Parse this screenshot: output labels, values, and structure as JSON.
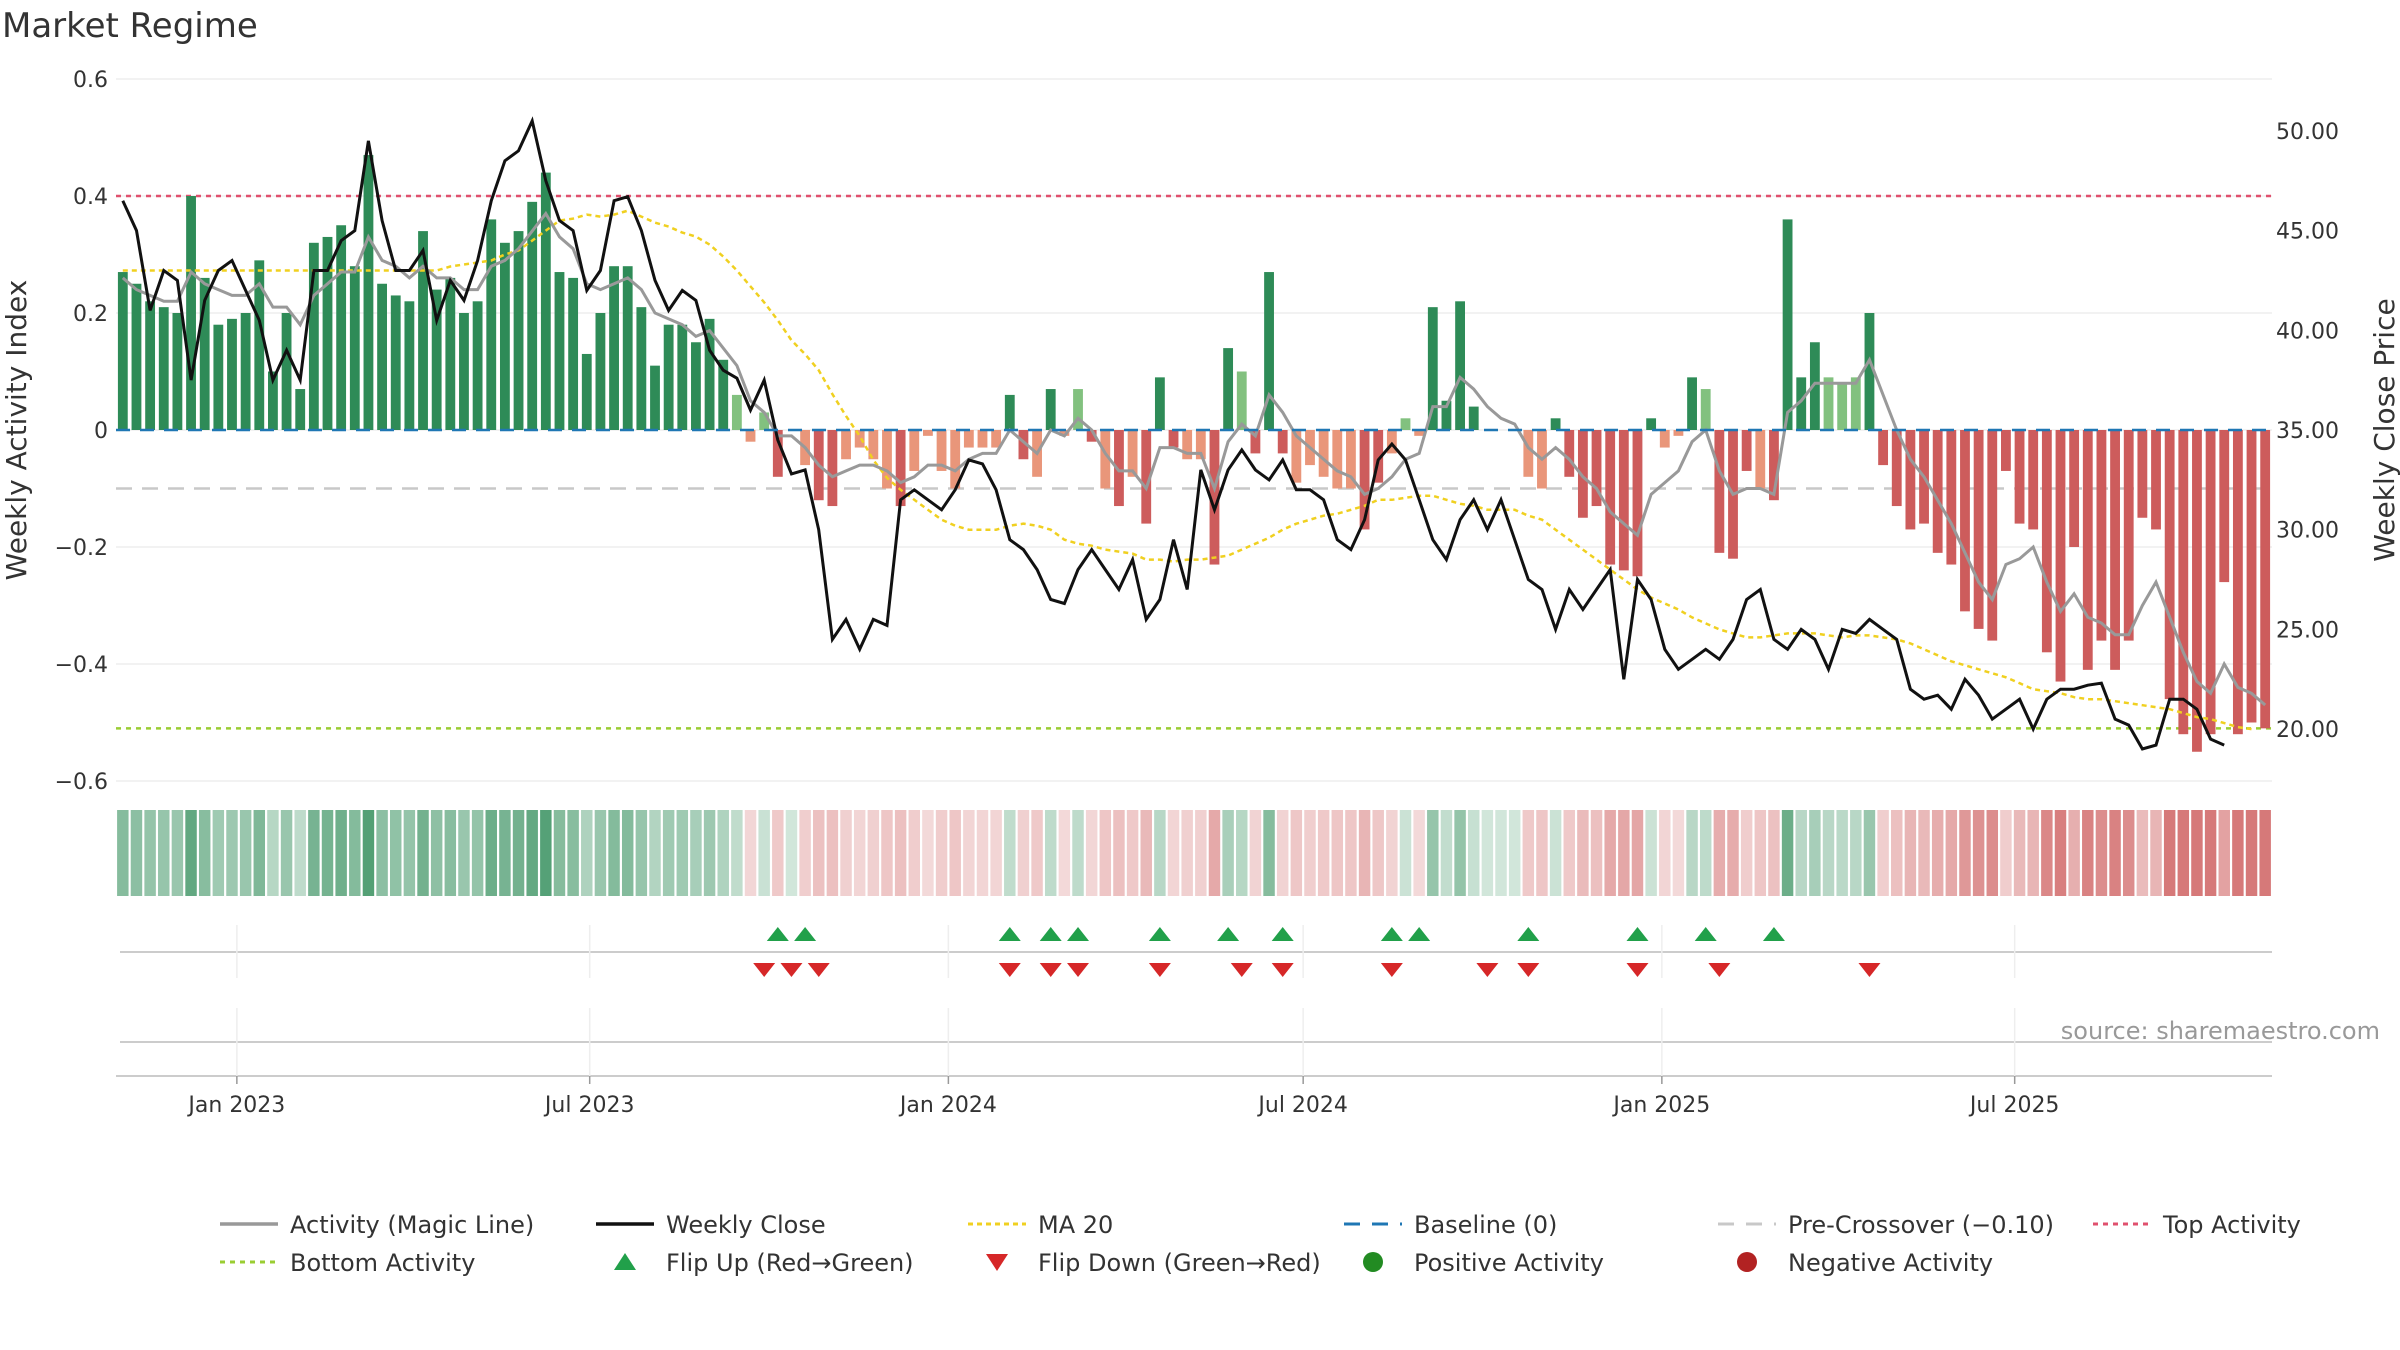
{
  "title": "Market Regime",
  "source": "source: sharemaestro.com",
  "chart_data": {
    "type": "bar",
    "title": "Market Regime",
    "ylabel": "Weekly Activity Index",
    "y2label": "Weekly Close Price",
    "ylim": [
      -0.6,
      0.6
    ],
    "y2lim": [
      17.5,
      52.5
    ],
    "yticks": [
      "0.6",
      "0.4",
      "0.2",
      "0",
      "−0.2",
      "−0.4",
      "−0.6"
    ],
    "y2ticks": [
      "50.00",
      "45.00",
      "40.00",
      "35.00",
      "30.00",
      "25.00",
      "20.00"
    ],
    "xticks": [
      "Jan 2023",
      "Jul 2023",
      "Jan 2024",
      "Jul 2024",
      "Jan 2025",
      "Jul 2025"
    ],
    "x_start": "2022-10-31",
    "weeks": 158,
    "top_activity": 0.4,
    "bottom_activity": -0.51,
    "pre_crossover": -0.1,
    "baseline": 0,
    "grid": true,
    "legend_position": "bottom",
    "activity": [
      0.27,
      0.25,
      0.22,
      0.21,
      0.2,
      0.4,
      0.26,
      0.18,
      0.19,
      0.2,
      0.29,
      0.1,
      0.2,
      0.07,
      0.32,
      0.33,
      0.35,
      0.28,
      0.47,
      0.25,
      0.23,
      0.22,
      0.34,
      0.24,
      0.26,
      0.2,
      0.22,
      0.36,
      0.32,
      0.34,
      0.39,
      0.44,
      0.27,
      0.26,
      0.13,
      0.2,
      0.28,
      0.28,
      0.21,
      0.11,
      0.18,
      0.18,
      0.15,
      0.19,
      0.12,
      0.06,
      -0.02,
      0.03,
      -0.08,
      0.0,
      -0.06,
      -0.12,
      -0.13,
      -0.05,
      -0.03,
      -0.05,
      -0.1,
      -0.13,
      -0.07,
      -0.01,
      -0.07,
      -0.1,
      -0.03,
      -0.03,
      -0.03,
      0.06,
      -0.05,
      -0.08,
      0.07,
      -0.01,
      0.07,
      -0.02,
      -0.1,
      -0.13,
      -0.08,
      -0.16,
      0.09,
      -0.03,
      -0.05,
      -0.05,
      -0.23,
      0.14,
      0.1,
      -0.04,
      0.27,
      -0.04,
      -0.09,
      -0.06,
      -0.08,
      -0.1,
      -0.1,
      -0.17,
      -0.09,
      -0.04,
      0.02,
      -0.01,
      0.21,
      0.05,
      0.22,
      0.04,
      0.0,
      0.0,
      0.0,
      -0.08,
      -0.1,
      0.02,
      -0.08,
      -0.15,
      -0.13,
      -0.23,
      -0.24,
      -0.25,
      0.02,
      -0.03,
      -0.01,
      0.09,
      0.07,
      -0.21,
      -0.22,
      -0.07,
      -0.1,
      -0.12,
      0.36,
      0.09,
      0.15,
      0.09,
      0.08,
      0.09,
      0.2,
      -0.06,
      -0.13,
      -0.17,
      -0.16,
      -0.21,
      -0.23,
      -0.31,
      -0.34,
      -0.36,
      -0.07,
      -0.16,
      -0.17,
      -0.38,
      -0.43,
      -0.2,
      -0.41,
      -0.36,
      -0.41,
      -0.36,
      -0.15,
      -0.17,
      -0.46,
      -0.52,
      -0.55,
      -0.52,
      -0.26,
      -0.52,
      -0.5,
      -0.51
    ],
    "magic_line": [
      0.26,
      0.24,
      0.23,
      0.22,
      0.22,
      0.27,
      0.25,
      0.24,
      0.23,
      0.23,
      0.25,
      0.21,
      0.21,
      0.18,
      0.23,
      0.25,
      0.27,
      0.27,
      0.33,
      0.29,
      0.28,
      0.26,
      0.28,
      0.26,
      0.26,
      0.24,
      0.24,
      0.28,
      0.29,
      0.31,
      0.34,
      0.37,
      0.33,
      0.31,
      0.25,
      0.24,
      0.25,
      0.26,
      0.24,
      0.2,
      0.19,
      0.18,
      0.16,
      0.17,
      0.14,
      0.11,
      0.05,
      0.03,
      -0.01,
      -0.01,
      -0.03,
      -0.06,
      -0.08,
      -0.07,
      -0.06,
      -0.06,
      -0.07,
      -0.09,
      -0.08,
      -0.06,
      -0.06,
      -0.07,
      -0.05,
      -0.04,
      -0.04,
      0.0,
      -0.02,
      -0.04,
      0.0,
      -0.01,
      0.02,
      0.0,
      -0.04,
      -0.07,
      -0.07,
      -0.1,
      -0.03,
      -0.03,
      -0.04,
      -0.04,
      -0.1,
      -0.02,
      0.01,
      -0.01,
      0.06,
      0.03,
      -0.01,
      -0.03,
      -0.05,
      -0.07,
      -0.08,
      -0.11,
      -0.1,
      -0.08,
      -0.05,
      -0.04,
      0.04,
      0.04,
      0.09,
      0.07,
      0.04,
      0.02,
      0.01,
      -0.03,
      -0.05,
      -0.03,
      -0.05,
      -0.08,
      -0.1,
      -0.14,
      -0.16,
      -0.18,
      -0.11,
      -0.09,
      -0.07,
      -0.02,
      0.0,
      -0.07,
      -0.11,
      -0.1,
      -0.1,
      -0.11,
      0.03,
      0.05,
      0.08,
      0.08,
      0.08,
      0.08,
      0.12,
      0.06,
      0.0,
      -0.05,
      -0.08,
      -0.12,
      -0.16,
      -0.21,
      -0.26,
      -0.29,
      -0.23,
      -0.22,
      -0.2,
      -0.26,
      -0.31,
      -0.28,
      -0.32,
      -0.33,
      -0.35,
      -0.35,
      -0.3,
      -0.26,
      -0.32,
      -0.38,
      -0.43,
      -0.45,
      -0.4,
      -0.44,
      -0.45,
      -0.47
    ],
    "weekly_close": [
      46.5,
      45.0,
      41.0,
      43.0,
      42.5,
      37.5,
      41.5,
      43.0,
      43.5,
      42.0,
      40.5,
      37.5,
      39.0,
      37.5,
      43.0,
      43.0,
      44.5,
      45.0,
      49.5,
      45.5,
      43.0,
      43.0,
      44.0,
      40.5,
      42.5,
      41.5,
      43.5,
      46.5,
      48.5,
      49.0,
      50.5,
      47.5,
      45.5,
      45.0,
      42.0,
      43.0,
      46.5,
      46.7,
      45.0,
      42.5,
      41.0,
      42.0,
      41.5,
      39.0,
      38.0,
      37.6,
      36.0,
      37.5,
      34.5,
      32.8,
      33.0,
      30.0,
      24.5,
      25.5,
      24.0,
      25.5,
      25.2,
      31.5,
      32.0,
      31.5,
      31.0,
      32.0,
      33.5,
      33.3,
      32.0,
      29.5,
      29.0,
      28.0,
      26.5,
      26.3,
      28.0,
      29.0,
      28.0,
      27.0,
      28.5,
      25.5,
      26.5,
      29.5,
      27.0,
      33.0,
      31.0,
      33.0,
      34.0,
      33.0,
      32.5,
      33.5,
      32.0,
      32.0,
      31.5,
      29.5,
      29.0,
      30.5,
      33.5,
      34.3,
      33.5,
      31.5,
      29.5,
      28.5,
      30.5,
      31.5,
      30.0,
      31.5,
      29.5,
      27.5,
      27.0,
      25.0,
      27.0,
      26.0,
      27.0,
      28.0,
      22.5,
      27.5,
      26.5,
      24.0,
      23.0,
      23.5,
      24.0,
      23.5,
      24.5,
      26.5,
      27.0,
      24.5,
      24.0,
      25.0,
      24.5,
      23.0,
      25.0,
      24.8,
      25.5,
      25.0,
      24.5,
      22.0,
      21.5,
      21.7,
      21.0,
      22.5,
      21.7,
      20.5,
      21.0,
      21.5,
      20.0,
      21.5,
      22.0,
      22.0,
      22.2,
      22.3,
      20.5,
      20.2,
      19.0,
      19.2,
      21.5,
      21.5,
      21.0,
      19.5,
      19.2
    ],
    "ma20": [
      43.0,
      43.0,
      43.0,
      43.0,
      43.0,
      43.0,
      43.0,
      43.0,
      43.0,
      43.0,
      43.0,
      43.0,
      43.0,
      43.0,
      43.0,
      43.0,
      43.0,
      43.0,
      43.0,
      43.0,
      43.0,
      43.0,
      43.0,
      43.0,
      43.2,
      43.3,
      43.4,
      43.5,
      43.8,
      44.0,
      44.5,
      45.0,
      45.5,
      45.6,
      45.8,
      45.7,
      45.8,
      46.0,
      45.7,
      45.4,
      45.2,
      44.9,
      44.7,
      44.3,
      43.7,
      43.0,
      42.2,
      41.4,
      40.5,
      39.5,
      38.8,
      38.0,
      36.8,
      35.7,
      34.7,
      33.5,
      32.6,
      32.0,
      31.5,
      31.0,
      30.5,
      30.2,
      30.0,
      30.0,
      30.0,
      30.2,
      30.3,
      30.2,
      30.0,
      29.5,
      29.3,
      29.2,
      29.0,
      28.9,
      28.8,
      28.5,
      28.5,
      28.4,
      28.5,
      28.5,
      28.6,
      28.7,
      29.0,
      29.3,
      29.6,
      30.0,
      30.3,
      30.5,
      30.7,
      30.8,
      31.0,
      31.2,
      31.5,
      31.5,
      31.6,
      31.7,
      31.7,
      31.5,
      31.3,
      31.2,
      31.0,
      31.0,
      31.0,
      30.7,
      30.5,
      30.0,
      29.5,
      29.0,
      28.5,
      28.0,
      27.5,
      27.0,
      26.6,
      26.3,
      26.0,
      25.6,
      25.3,
      25.0,
      24.8,
      24.6,
      24.6,
      24.7,
      24.8,
      24.8,
      24.8,
      24.7,
      24.6,
      24.7,
      24.7,
      24.6,
      24.5,
      24.3,
      24.0,
      23.7,
      23.4,
      23.2,
      23.0,
      22.8,
      22.6,
      22.3,
      22.0,
      21.9,
      21.8,
      21.6,
      21.5,
      21.5,
      21.4,
      21.3,
      21.2,
      21.1,
      21.0,
      20.8,
      20.6,
      20.5,
      20.3,
      20.1,
      20.0
    ],
    "flip_up": [
      48,
      50,
      65,
      68,
      70,
      76,
      81,
      85,
      93,
      95,
      103,
      111,
      116,
      121
    ],
    "flip_down": [
      47,
      49,
      51,
      65,
      68,
      70,
      76,
      82,
      85,
      93,
      100,
      103,
      111,
      117,
      128
    ],
    "legend": [
      "Activity (Magic Line)",
      "Weekly Close",
      "MA 20",
      "Baseline (0)",
      "Pre-Crossover (−0.10)",
      "Top Activity",
      "Bottom Activity",
      "Flip Up (Red→Green)",
      "Flip Down (Green→Red)",
      "Positive Activity",
      "Negative Activity"
    ]
  },
  "colors": {
    "positive_dark": "#2e8b57",
    "positive_light": "#82c17f",
    "negative_dark": "#cd5c5c",
    "negative_light": "#e9967a",
    "magic_line": "#999999",
    "weekly_close": "#111111",
    "ma20": "#f0d020",
    "baseline": "#1f77b4",
    "pre_crossover": "#c8c8c8",
    "top_activity": "#e0506e",
    "bottom_activity": "#9acd32",
    "flip_up": "#21a04a",
    "flip_down": "#d62728",
    "negative_marker": "#b22222",
    "positive_marker": "#228b22"
  }
}
